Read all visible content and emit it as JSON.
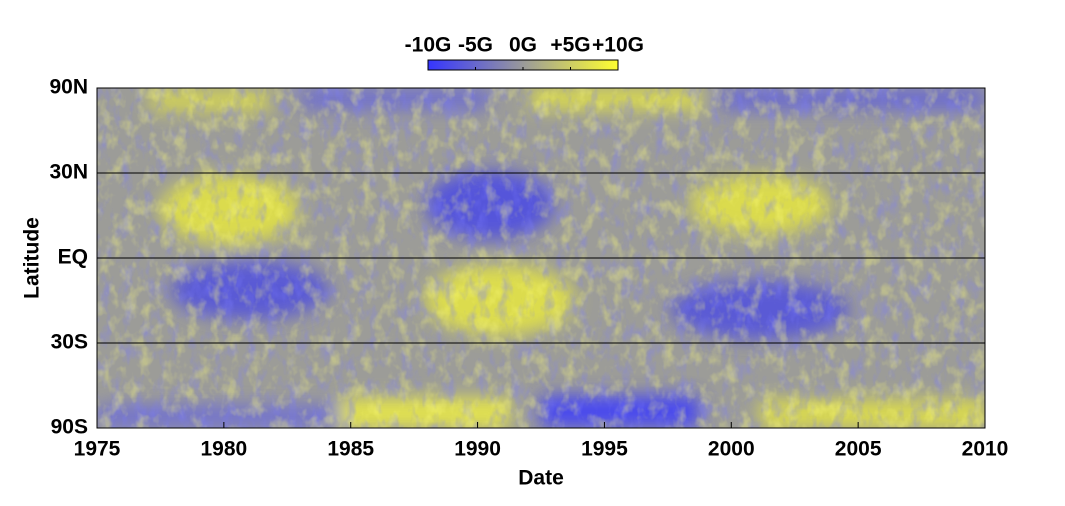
{
  "chart_data": {
    "type": "heatmap",
    "xlabel": "Date",
    "ylabel": "Latitude",
    "xlim": [
      1975,
      2010
    ],
    "xticks": [
      1975,
      1980,
      1985,
      1990,
      1995,
      2000,
      2005,
      2010
    ],
    "ylim": [
      -90,
      90
    ],
    "yscale": "sine",
    "yticks": [
      {
        "value": 90,
        "label": "90N"
      },
      {
        "value": 30,
        "label": "30N"
      },
      {
        "value": 0,
        "label": "EQ"
      },
      {
        "value": -30,
        "label": "30S"
      },
      {
        "value": -90,
        "label": "90S"
      }
    ],
    "grid": true,
    "colorbar": {
      "clim": [
        -10,
        10
      ],
      "colors": [
        "#3535ff",
        "#9a9a9a",
        "#ffff30"
      ],
      "ticks": [
        {
          "value": -10,
          "label": "-10G"
        },
        {
          "value": -5,
          "label": "-5G"
        },
        {
          "value": 0,
          "label": "0G"
        },
        {
          "value": 5,
          "label": "+5G"
        },
        {
          "value": 10,
          "label": "+10G"
        }
      ]
    }
  }
}
